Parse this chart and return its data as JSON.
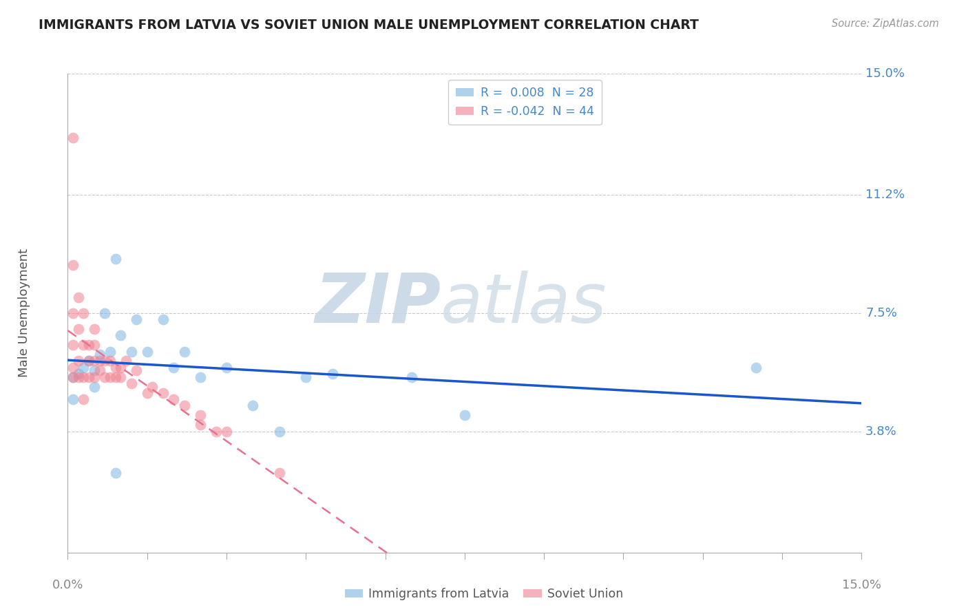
{
  "title": "IMMIGRANTS FROM LATVIA VS SOVIET UNION MALE UNEMPLOYMENT CORRELATION CHART",
  "source": "Source: ZipAtlas.com",
  "ylabel": "Male Unemployment",
  "xlim": [
    0.0,
    0.15
  ],
  "ylim": [
    0.0,
    0.15
  ],
  "ytick_positions": [
    0.038,
    0.075,
    0.112,
    0.15
  ],
  "ytick_labels": [
    "3.8%",
    "7.5%",
    "11.2%",
    "15.0%"
  ],
  "series1_label": "Immigrants from Latvia",
  "series2_label": "Soviet Union",
  "series1_color": "#7ab3e0",
  "series2_color": "#f08090",
  "trendline1_color": "#1a56cc",
  "trendline2_color": "#e87090",
  "background_color": "#ffffff",
  "grid_color": "#bbbbbb",
  "title_color": "#222222",
  "axis_label_color": "#4488cc",
  "watermark_zip_color": "#d0dce8",
  "watermark_atlas_color": "#c8d8e8",
  "legend1_r": "0.008",
  "legend1_n": "28",
  "legend2_r": "-0.042",
  "legend2_n": "44",
  "series1_x": [
    0.001,
    0.001,
    0.002,
    0.003,
    0.004,
    0.005,
    0.005,
    0.006,
    0.007,
    0.008,
    0.009,
    0.01,
    0.012,
    0.013,
    0.015,
    0.018,
    0.02,
    0.022,
    0.025,
    0.03,
    0.035,
    0.04,
    0.045,
    0.05,
    0.065,
    0.075,
    0.13,
    0.009
  ],
  "series1_y": [
    0.055,
    0.048,
    0.056,
    0.058,
    0.06,
    0.057,
    0.052,
    0.062,
    0.075,
    0.063,
    0.092,
    0.068,
    0.063,
    0.073,
    0.063,
    0.073,
    0.058,
    0.063,
    0.055,
    0.058,
    0.046,
    0.038,
    0.055,
    0.056,
    0.055,
    0.043,
    0.058,
    0.025
  ],
  "series2_x": [
    0.001,
    0.001,
    0.001,
    0.001,
    0.001,
    0.001,
    0.002,
    0.002,
    0.002,
    0.002,
    0.003,
    0.003,
    0.003,
    0.003,
    0.004,
    0.004,
    0.004,
    0.005,
    0.005,
    0.005,
    0.005,
    0.006,
    0.006,
    0.007,
    0.007,
    0.008,
    0.008,
    0.009,
    0.009,
    0.01,
    0.01,
    0.011,
    0.012,
    0.013,
    0.015,
    0.016,
    0.018,
    0.02,
    0.022,
    0.025,
    0.025,
    0.028,
    0.03,
    0.04
  ],
  "series2_y": [
    0.065,
    0.075,
    0.09,
    0.13,
    0.055,
    0.058,
    0.07,
    0.08,
    0.055,
    0.06,
    0.075,
    0.065,
    0.055,
    0.048,
    0.06,
    0.065,
    0.055,
    0.055,
    0.06,
    0.065,
    0.07,
    0.06,
    0.057,
    0.055,
    0.06,
    0.055,
    0.06,
    0.055,
    0.058,
    0.055,
    0.058,
    0.06,
    0.053,
    0.057,
    0.05,
    0.052,
    0.05,
    0.048,
    0.046,
    0.04,
    0.043,
    0.038,
    0.038,
    0.025
  ]
}
